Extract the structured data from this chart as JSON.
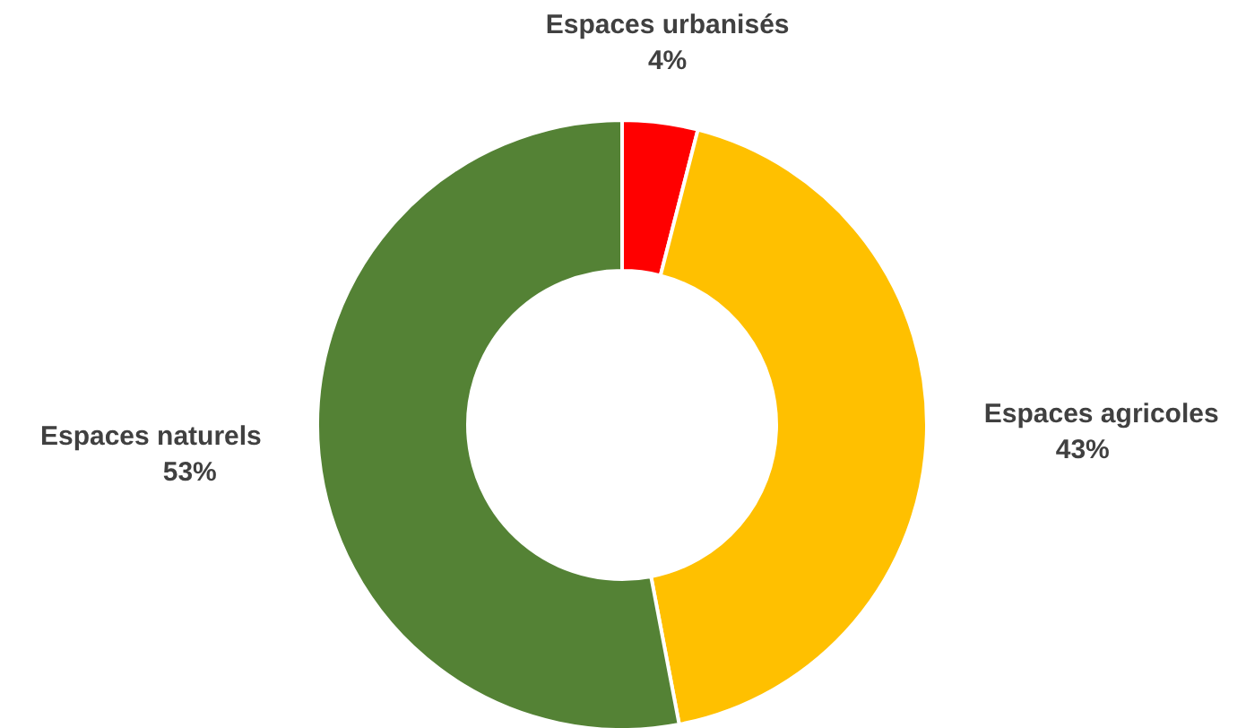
{
  "chart_data": {
    "type": "donut",
    "categories": [
      "Espaces urbanisés",
      "Espaces agricoles",
      "Espaces naturels"
    ],
    "values": [
      4,
      43,
      53
    ],
    "value_labels": [
      "4%",
      "43%",
      "53%"
    ],
    "colors": [
      "#ff0000",
      "#ffc000",
      "#548235"
    ]
  }
}
